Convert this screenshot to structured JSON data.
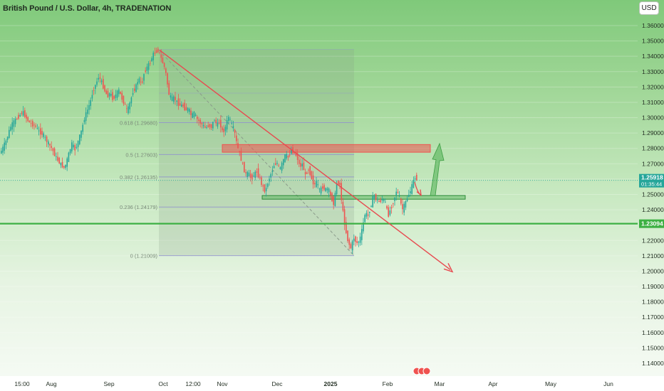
{
  "header": {
    "title": "British Pound / U.S. Dollar, 4h, TRADENATION",
    "currency_button": "USD"
  },
  "colors": {
    "bg_top": "#7fc97a",
    "bg_bottom": "#f7fbf6",
    "candle_up": "#26a69a",
    "candle_down": "#ef5350",
    "trendline": "#e8494f",
    "support_line": "#3cb043",
    "resistance_zone": "#ef5350",
    "support_zone": "#4caf50",
    "fib_line": "#8f8fd0",
    "last_price_label": "#26a69a",
    "support_label": "#3cb043"
  },
  "chart_data": {
    "type": "candlestick",
    "symbol": "British Pound / U.S. Dollar",
    "interval": "4h",
    "source": "TRADENATION",
    "currency": "USD",
    "ylim": [
      1.1365,
      1.3655
    ],
    "y_ticks": [
      "1.36000",
      "1.35000",
      "1.34000",
      "1.33000",
      "1.32000",
      "1.31000",
      "1.30000",
      "1.29000",
      "1.28000",
      "1.27000",
      "1.26000",
      "1.25000",
      "1.24000",
      "1.23000",
      "1.22000",
      "1.21000",
      "1.20000",
      "1.19000",
      "1.18000",
      "1.17000",
      "1.16000",
      "1.15000",
      "1.14000"
    ],
    "x_ticks": [
      "15:00",
      "Aug",
      "Sep",
      "Oct",
      "12:00",
      "Nov",
      "Dec",
      "2025",
      "Feb",
      "Mar",
      "Apr",
      "May",
      "Jun"
    ],
    "price_path": [
      [
        0,
        1.276
      ],
      [
        4,
        1.279
      ],
      [
        10,
        1.285
      ],
      [
        16,
        1.294
      ],
      [
        22,
        1.298
      ],
      [
        28,
        1.301
      ],
      [
        33,
        1.304
      ],
      [
        38,
        1.3
      ],
      [
        44,
        1.296
      ],
      [
        50,
        1.295
      ],
      [
        56,
        1.291
      ],
      [
        62,
        1.289
      ],
      [
        68,
        1.284
      ],
      [
        74,
        1.28
      ],
      [
        80,
        1.274
      ],
      [
        86,
        1.27
      ],
      [
        92,
        1.267
      ],
      [
        97,
        1.275
      ],
      [
        102,
        1.283
      ],
      [
        107,
        1.279
      ],
      [
        112,
        1.286
      ],
      [
        116,
        1.292
      ],
      [
        120,
        1.3
      ],
      [
        124,
        1.305
      ],
      [
        128,
        1.31
      ],
      [
        132,
        1.318
      ],
      [
        136,
        1.322
      ],
      [
        140,
        1.327
      ],
      [
        144,
        1.323
      ],
      [
        148,
        1.318
      ],
      [
        152,
        1.314
      ],
      [
        156,
        1.316
      ],
      [
        160,
        1.312
      ],
      [
        164,
        1.315
      ],
      [
        168,
        1.318
      ],
      [
        172,
        1.313
      ],
      [
        176,
        1.309
      ],
      [
        180,
        1.304
      ],
      [
        184,
        1.31
      ],
      [
        188,
        1.317
      ],
      [
        192,
        1.32
      ],
      [
        196,
        1.326
      ],
      [
        200,
        1.321
      ],
      [
        204,
        1.33
      ],
      [
        208,
        1.333
      ],
      [
        212,
        1.336
      ],
      [
        216,
        1.341
      ],
      [
        220,
        1.343
      ],
      [
        224,
        1.344
      ],
      [
        228,
        1.338
      ],
      [
        232,
        1.333
      ],
      [
        235,
        1.327
      ],
      [
        238,
        1.316
      ],
      [
        242,
        1.312
      ],
      [
        246,
        1.313
      ],
      [
        250,
        1.31
      ],
      [
        254,
        1.308
      ],
      [
        258,
        1.308
      ],
      [
        262,
        1.305
      ],
      [
        266,
        1.306
      ],
      [
        270,
        1.301
      ],
      [
        274,
        1.303
      ],
      [
        278,
        1.299
      ],
      [
        282,
        1.297
      ],
      [
        286,
        1.295
      ],
      [
        290,
        1.293
      ],
      [
        294,
        1.295
      ],
      [
        298,
        1.294
      ],
      [
        302,
        1.299
      ],
      [
        306,
        1.295
      ],
      [
        310,
        1.297
      ],
      [
        314,
        1.29
      ],
      [
        318,
        1.294
      ],
      [
        322,
        1.301
      ],
      [
        326,
        1.296
      ],
      [
        330,
        1.292
      ],
      [
        334,
        1.282
      ],
      [
        338,
        1.276
      ],
      [
        342,
        1.269
      ],
      [
        346,
        1.263
      ],
      [
        350,
        1.264
      ],
      [
        354,
        1.26
      ],
      [
        358,
        1.263
      ],
      [
        362,
        1.265
      ],
      [
        366,
        1.26
      ],
      [
        370,
        1.255
      ],
      [
        374,
        1.252
      ],
      [
        378,
        1.259
      ],
      [
        382,
        1.264
      ],
      [
        386,
        1.269
      ],
      [
        390,
        1.271
      ],
      [
        394,
        1.266
      ],
      [
        398,
        1.271
      ],
      [
        402,
        1.276
      ],
      [
        406,
        1.274
      ],
      [
        410,
        1.279
      ],
      [
        414,
        1.277
      ],
      [
        418,
        1.275
      ],
      [
        422,
        1.268
      ],
      [
        426,
        1.27
      ],
      [
        430,
        1.262
      ],
      [
        434,
        1.267
      ],
      [
        438,
        1.262
      ],
      [
        442,
        1.256
      ],
      [
        446,
        1.258
      ],
      [
        450,
        1.252
      ],
      [
        454,
        1.255
      ],
      [
        458,
        1.253
      ],
      [
        462,
        1.254
      ],
      [
        466,
        1.248
      ],
      [
        470,
        1.244
      ],
      [
        474,
        1.257
      ],
      [
        478,
        1.258
      ],
      [
        482,
        1.241
      ],
      [
        486,
        1.228
      ],
      [
        490,
        1.219
      ],
      [
        494,
        1.215
      ],
      [
        498,
        1.222
      ],
      [
        502,
        1.218
      ],
      [
        506,
        1.22
      ],
      [
        510,
        1.228
      ],
      [
        514,
        1.238
      ],
      [
        518,
        1.236
      ],
      [
        522,
        1.243
      ],
      [
        526,
        1.25
      ],
      [
        530,
        1.246
      ],
      [
        534,
        1.245
      ],
      [
        538,
        1.247
      ],
      [
        542,
        1.245
      ],
      [
        546,
        1.236
      ],
      [
        550,
        1.241
      ],
      [
        554,
        1.246
      ],
      [
        558,
        1.253
      ],
      [
        562,
        1.248
      ],
      [
        566,
        1.24
      ],
      [
        570,
        1.244
      ],
      [
        574,
        1.249
      ],
      [
        578,
        1.253
      ],
      [
        582,
        1.259
      ],
      [
        584,
        1.261
      ],
      [
        588,
        1.2592
      ]
    ],
    "last_price": {
      "value": "1.25918",
      "countdown": "01:35:44"
    },
    "support_level": {
      "value": "1.23094"
    },
    "resistance_zone": {
      "from_price": 1.2775,
      "to_price": 1.2825
    },
    "support_zone": {
      "from_price": 1.2469,
      "to_price": 1.2493
    },
    "trendline": {
      "from_price": 1.344,
      "to_price": 1.201
    },
    "fibonacci": [
      {
        "label": "0.618 (1.29680)",
        "price": 1.2968
      },
      {
        "label": "0.5 (1.27603)",
        "price": 1.276
      },
      {
        "label": "0.382 (1.26135)",
        "price": 1.2614
      },
      {
        "label": "0.236 (1.24179)",
        "price": 1.2418
      },
      {
        "label": "0 (1.21009)",
        "price": 1.2101
      }
    ]
  }
}
